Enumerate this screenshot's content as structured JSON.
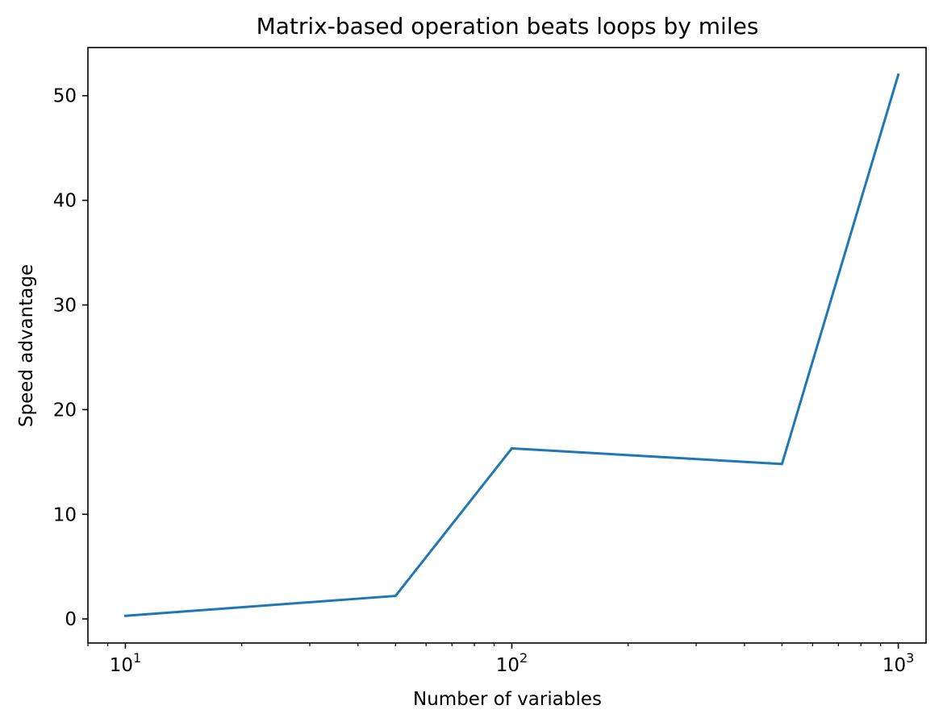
{
  "chart_data": {
    "type": "line",
    "title": "Matrix-based operation beats loops by miles",
    "xlabel": "Number of variables",
    "ylabel": "Speed advantage",
    "xscale": "log",
    "xlim": [
      8,
      1180
    ],
    "ylim": [
      -2.3,
      54.6
    ],
    "grid": false,
    "legend": "none",
    "x_ticks": [
      {
        "value": 10,
        "base": "10",
        "exp": "1"
      },
      {
        "value": 100,
        "base": "10",
        "exp": "2"
      },
      {
        "value": 1000,
        "base": "10",
        "exp": "3"
      }
    ],
    "y_ticks": [
      0,
      10,
      20,
      30,
      40,
      50
    ],
    "series": [
      {
        "color": "#1f77b4",
        "x": [
          10,
          50,
          100,
          500,
          1000
        ],
        "y": [
          0.3,
          2.2,
          16.3,
          14.8,
          52.0
        ]
      }
    ]
  }
}
